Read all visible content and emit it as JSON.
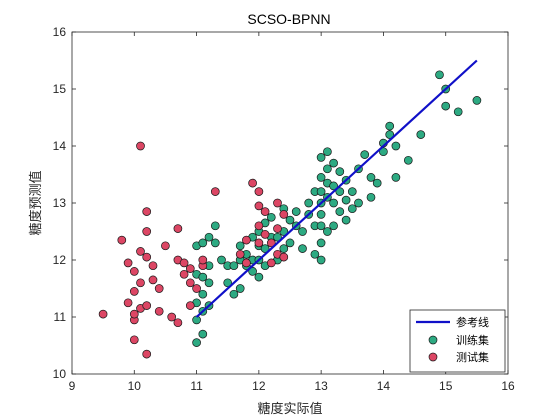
{
  "chart_data": {
    "type": "scatter",
    "title": "SCSO-BPNN",
    "xlabel": "糖度实际值",
    "ylabel": "糖度预测值",
    "xlim": [
      9,
      16
    ],
    "ylim": [
      10,
      16
    ],
    "xticks": [
      "9",
      "10",
      "11",
      "12",
      "13",
      "14",
      "15",
      "16"
    ],
    "yticks": [
      "10",
      "11",
      "12",
      "13",
      "14",
      "15",
      "16"
    ],
    "grid": false,
    "legend_position": "bottom-right",
    "reference_line": {
      "name": "参考线",
      "x": [
        11,
        15.5
      ],
      "y": [
        11,
        15.5
      ],
      "color": "#1010c8"
    },
    "series": [
      {
        "name": "训练集",
        "color": "#2daa82",
        "points": [
          [
            11.0,
            10.55
          ],
          [
            11.1,
            10.7
          ],
          [
            11.0,
            10.95
          ],
          [
            11.1,
            11.1
          ],
          [
            11.0,
            11.25
          ],
          [
            11.1,
            11.4
          ],
          [
            11.2,
            11.2
          ],
          [
            11.2,
            11.6
          ],
          [
            11.0,
            11.75
          ],
          [
            11.1,
            11.7
          ],
          [
            11.2,
            11.9
          ],
          [
            11.0,
            12.25
          ],
          [
            11.1,
            12.3
          ],
          [
            11.2,
            12.4
          ],
          [
            11.3,
            12.3
          ],
          [
            11.3,
            12.6
          ],
          [
            11.4,
            12.0
          ],
          [
            11.5,
            11.9
          ],
          [
            11.5,
            11.6
          ],
          [
            11.6,
            11.4
          ],
          [
            11.6,
            11.9
          ],
          [
            11.7,
            11.5
          ],
          [
            11.7,
            12.0
          ],
          [
            11.7,
            12.25
          ],
          [
            11.8,
            11.9
          ],
          [
            11.8,
            12.1
          ],
          [
            11.9,
            12.4
          ],
          [
            11.9,
            11.8
          ],
          [
            11.9,
            12.0
          ],
          [
            12.0,
            11.7
          ],
          [
            12.0,
            12.0
          ],
          [
            12.0,
            12.25
          ],
          [
            12.0,
            12.5
          ],
          [
            12.1,
            11.9
          ],
          [
            12.1,
            12.2
          ],
          [
            12.1,
            12.65
          ],
          [
            12.2,
            12.4
          ],
          [
            12.2,
            12.75
          ],
          [
            12.3,
            12.0
          ],
          [
            12.3,
            12.4
          ],
          [
            12.4,
            12.2
          ],
          [
            12.4,
            12.5
          ],
          [
            12.4,
            12.9
          ],
          [
            12.5,
            12.3
          ],
          [
            12.5,
            12.7
          ],
          [
            12.6,
            12.6
          ],
          [
            12.6,
            12.85
          ],
          [
            12.7,
            12.2
          ],
          [
            12.7,
            12.5
          ],
          [
            12.8,
            12.8
          ],
          [
            12.8,
            13.0
          ],
          [
            12.9,
            12.1
          ],
          [
            12.9,
            12.6
          ],
          [
            12.9,
            13.2
          ],
          [
            13.0,
            12.0
          ],
          [
            13.0,
            12.3
          ],
          [
            13.0,
            12.6
          ],
          [
            13.0,
            12.8
          ],
          [
            13.0,
            13.0
          ],
          [
            13.0,
            13.2
          ],
          [
            13.0,
            13.45
          ],
          [
            13.0,
            13.8
          ],
          [
            13.1,
            12.5
          ],
          [
            13.1,
            13.1
          ],
          [
            13.1,
            13.35
          ],
          [
            13.1,
            13.6
          ],
          [
            13.1,
            13.9
          ],
          [
            13.2,
            12.6
          ],
          [
            13.2,
            13.0
          ],
          [
            13.2,
            13.3
          ],
          [
            13.2,
            13.7
          ],
          [
            13.3,
            12.85
          ],
          [
            13.3,
            13.2
          ],
          [
            13.3,
            13.55
          ],
          [
            13.4,
            12.7
          ],
          [
            13.4,
            13.05
          ],
          [
            13.4,
            13.4
          ],
          [
            13.5,
            12.9
          ],
          [
            13.5,
            13.2
          ],
          [
            13.6,
            13.6
          ],
          [
            13.6,
            13.0
          ],
          [
            13.7,
            13.85
          ],
          [
            13.8,
            13.1
          ],
          [
            13.8,
            13.45
          ],
          [
            13.9,
            13.35
          ],
          [
            14.0,
            13.9
          ],
          [
            14.0,
            14.05
          ],
          [
            14.1,
            14.2
          ],
          [
            14.1,
            14.35
          ],
          [
            14.2,
            14.0
          ],
          [
            14.2,
            13.45
          ],
          [
            14.4,
            13.75
          ],
          [
            14.6,
            14.2
          ],
          [
            14.9,
            15.25
          ],
          [
            15.0,
            15.0
          ],
          [
            15.0,
            14.7
          ],
          [
            15.2,
            14.6
          ],
          [
            15.5,
            14.8
          ]
        ]
      },
      {
        "name": "测试集",
        "color": "#dc4664",
        "points": [
          [
            9.5,
            11.05
          ],
          [
            9.8,
            12.35
          ],
          [
            9.9,
            11.95
          ],
          [
            9.9,
            11.25
          ],
          [
            10.0,
            10.95
          ],
          [
            10.0,
            11.05
          ],
          [
            10.0,
            11.45
          ],
          [
            10.0,
            10.6
          ],
          [
            10.0,
            11.8
          ],
          [
            10.1,
            11.15
          ],
          [
            10.1,
            11.6
          ],
          [
            10.1,
            12.15
          ],
          [
            10.1,
            14.0
          ],
          [
            10.2,
            10.35
          ],
          [
            10.2,
            11.2
          ],
          [
            10.2,
            12.05
          ],
          [
            10.2,
            12.5
          ],
          [
            10.2,
            12.85
          ],
          [
            10.3,
            11.65
          ],
          [
            10.3,
            11.9
          ],
          [
            10.4,
            11.1
          ],
          [
            10.4,
            11.5
          ],
          [
            10.5,
            12.25
          ],
          [
            10.6,
            11.0
          ],
          [
            10.7,
            10.9
          ],
          [
            10.7,
            12.0
          ],
          [
            10.7,
            12.55
          ],
          [
            10.8,
            11.95
          ],
          [
            10.8,
            11.75
          ],
          [
            10.9,
            11.2
          ],
          [
            10.9,
            11.6
          ],
          [
            10.9,
            11.85
          ],
          [
            11.0,
            11.5
          ],
          [
            11.1,
            11.9
          ],
          [
            11.1,
            12.0
          ],
          [
            11.3,
            13.2
          ],
          [
            11.7,
            12.1
          ],
          [
            11.8,
            12.35
          ],
          [
            11.8,
            11.95
          ],
          [
            11.9,
            13.35
          ],
          [
            12.0,
            12.6
          ],
          [
            12.0,
            12.95
          ],
          [
            12.0,
            12.3
          ],
          [
            12.0,
            13.2
          ],
          [
            12.1,
            12.85
          ],
          [
            12.1,
            12.45
          ],
          [
            12.2,
            11.95
          ],
          [
            12.2,
            12.3
          ],
          [
            12.3,
            12.1
          ],
          [
            12.3,
            12.55
          ],
          [
            12.3,
            13.0
          ],
          [
            12.4,
            12.05
          ],
          [
            12.4,
            12.8
          ]
        ]
      }
    ]
  }
}
